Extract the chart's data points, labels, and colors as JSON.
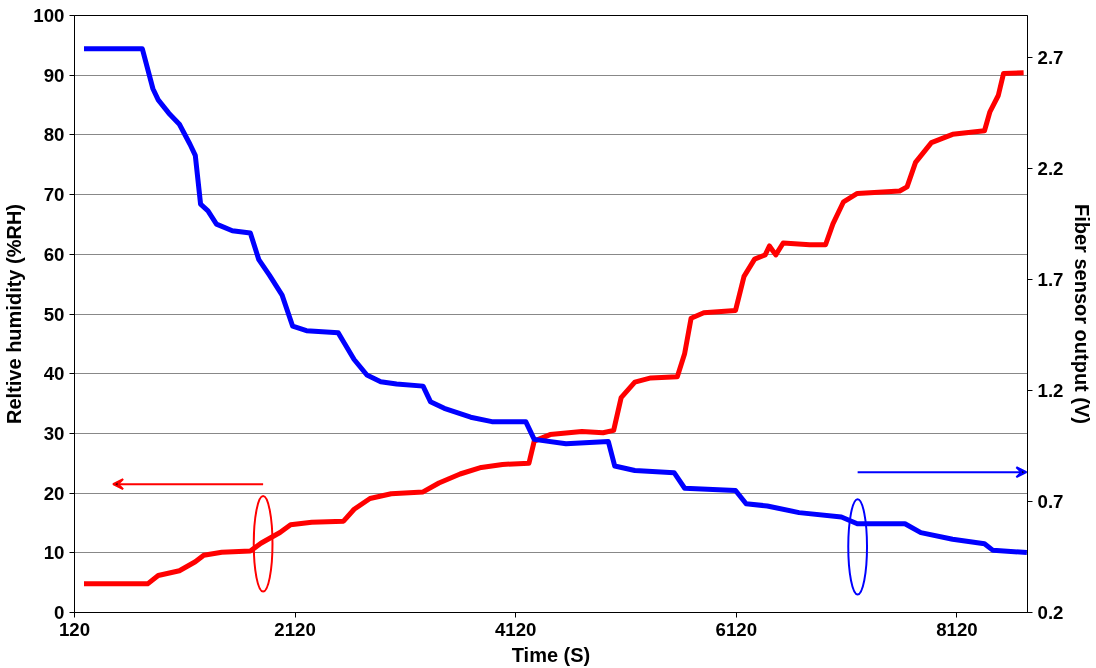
{
  "chart_data": {
    "type": "line",
    "xlabel": "Time (S)",
    "ylabel": "Reltive humidity (%RH)",
    "y2label": "Fiber sensor output (V)",
    "xlim": [
      120,
      8760
    ],
    "xticks": [
      120,
      2120,
      4120,
      6120,
      8120
    ],
    "ylim": [
      0,
      100
    ],
    "yticks": [
      0,
      10,
      20,
      30,
      40,
      50,
      60,
      70,
      80,
      90,
      100
    ],
    "y2lim": [
      0.2,
      2.89
    ],
    "y2ticks": [
      0.2,
      0.7,
      1.2,
      1.7,
      2.2,
      2.7
    ],
    "grid": "y",
    "line_style": "solid",
    "marker": "none",
    "series": [
      {
        "color": "#ff0000",
        "x": [
          206,
          783,
          879,
          1071,
          1215,
          1292,
          1455,
          1714,
          1810,
          1983,
          2079,
          2271,
          2559,
          2655,
          2799,
          2991,
          3280,
          3424,
          3616,
          3808,
          4000,
          4240,
          4288,
          4432,
          4720,
          4912,
          5008,
          5076,
          5200,
          5345,
          5585,
          5652,
          5710,
          5825,
          6113,
          6190,
          6286,
          6382,
          6420,
          6478,
          6545,
          6785,
          6929,
          6996,
          7092,
          7217,
          7601,
          7668,
          7745,
          7889,
          8081,
          8370,
          8418,
          8495,
          8543,
          8725
        ],
        "values": [
          4.8,
          4.8,
          6.2,
          7,
          8.5,
          9.6,
          10.1,
          10.3,
          11.6,
          13.4,
          14.7,
          15.1,
          15.3,
          17.3,
          19.1,
          19.9,
          20.2,
          21.7,
          23.2,
          24.3,
          24.8,
          25,
          28.7,
          29.8,
          30.3,
          30.1,
          30.5,
          36,
          38.6,
          39.3,
          39.5,
          43.4,
          49.3,
          50.2,
          50.6,
          56.3,
          59.2,
          59.9,
          61.4,
          59.9,
          61.9,
          61.6,
          61.6,
          65.1,
          68.8,
          70.2,
          70.6,
          71.3,
          75.4,
          78.7,
          80.1,
          80.7,
          83.8,
          86.6,
          90.3,
          90.4
        ]
      },
      {
        "color": "#0000ff",
        "axis": "y2",
        "x": [
          206,
          735,
          831,
          879,
          975,
          1071,
          1167,
          1215,
          1263,
          1330,
          1407,
          1551,
          1714,
          1791,
          1887,
          2002,
          2098,
          2223,
          2511,
          2559,
          2655,
          2771,
          2896,
          3040,
          3280,
          3347,
          3472,
          3712,
          3904,
          4211,
          4288,
          4576,
          4960,
          5018,
          5200,
          5556,
          5652,
          6113,
          6209,
          6401,
          6689,
          7073,
          7217,
          7649,
          7793,
          8081,
          8370,
          8447,
          8754
        ],
        "values": [
          2.74,
          2.74,
          2.56,
          2.51,
          2.45,
          2.4,
          2.31,
          2.26,
          2.04,
          2.01,
          1.95,
          1.92,
          1.91,
          1.79,
          1.72,
          1.63,
          1.49,
          1.47,
          1.46,
          1.42,
          1.34,
          1.27,
          1.24,
          1.23,
          1.22,
          1.15,
          1.12,
          1.08,
          1.06,
          1.06,
          0.98,
          0.96,
          0.97,
          0.86,
          0.84,
          0.83,
          0.76,
          0.75,
          0.69,
          0.68,
          0.65,
          0.63,
          0.6,
          0.6,
          0.56,
          0.53,
          0.51,
          0.48,
          0.47
        ]
      }
    ]
  }
}
